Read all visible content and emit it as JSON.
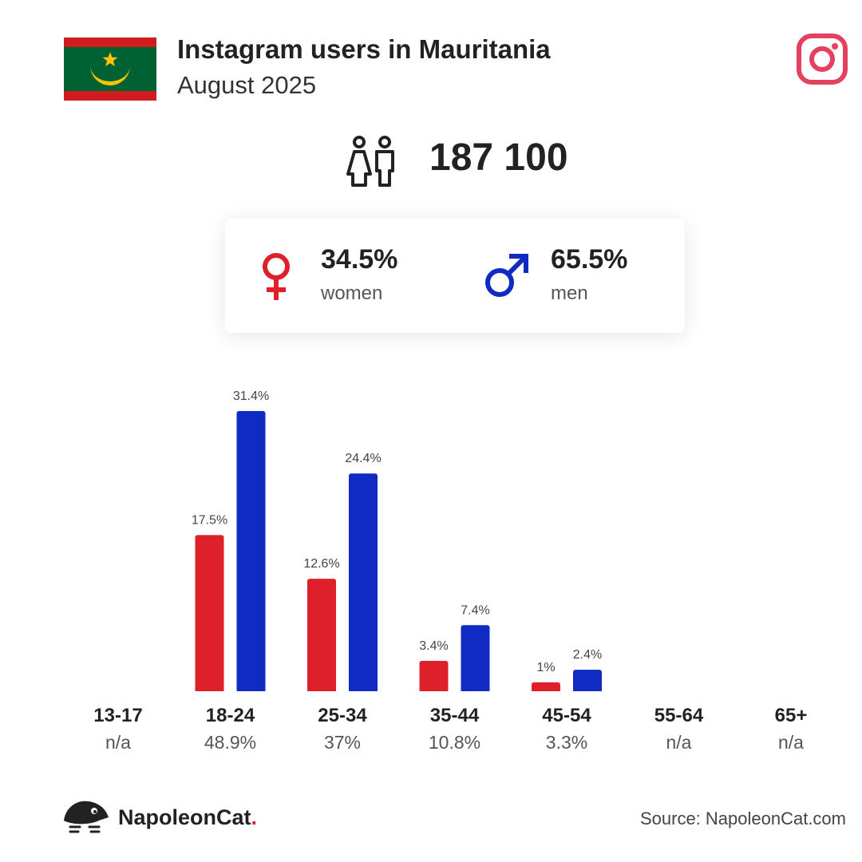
{
  "header": {
    "title": "Instagram users in Mauritania",
    "subtitle": "August 2025",
    "flag_icon": "mauritania-flag-icon",
    "platform_icon": "instagram-icon"
  },
  "total": {
    "icon": "users-icon",
    "value": "187 100"
  },
  "gender": {
    "female": {
      "icon": "female-symbol-icon",
      "percent": "34.5%",
      "label": "women",
      "color": "#dd2029"
    },
    "male": {
      "icon": "male-symbol-icon",
      "percent": "65.5%",
      "label": "men",
      "color": "#0f2bc4"
    }
  },
  "colors": {
    "women": "#dd2029",
    "men": "#0f2bc4",
    "flag_green": "#006233",
    "flag_red": "#d01c1f",
    "flag_gold": "#ffc400",
    "instagram": "#e4405f"
  },
  "chart_data": {
    "type": "bar",
    "categories": [
      "13-17",
      "18-24",
      "25-34",
      "35-44",
      "45-54",
      "55-64",
      "65+"
    ],
    "category_totals": [
      "n/a",
      "48.9%",
      "37%",
      "10.8%",
      "3.3%",
      "n/a",
      "n/a"
    ],
    "series": [
      {
        "name": "women",
        "color": "#dd2029",
        "values": [
          null,
          17.5,
          12.6,
          3.4,
          1,
          null,
          null
        ],
        "labels": [
          "",
          "17.5%",
          "12.6%",
          "3.4%",
          "1%",
          "",
          ""
        ]
      },
      {
        "name": "men",
        "color": "#0f2bc4",
        "values": [
          null,
          31.4,
          24.4,
          7.4,
          2.4,
          null,
          null
        ],
        "labels": [
          "",
          "31.4%",
          "24.4%",
          "7.4%",
          "2.4%",
          "",
          ""
        ]
      }
    ],
    "ylim": [
      0,
      31.4
    ],
    "grid": false,
    "xlabel": "",
    "ylabel": ""
  },
  "footer": {
    "brand_icon": "napoleoncat-logo-icon",
    "brand_name": "NapoleonCat",
    "brand_dot": ".",
    "source": "Source: NapoleonCat.com"
  }
}
